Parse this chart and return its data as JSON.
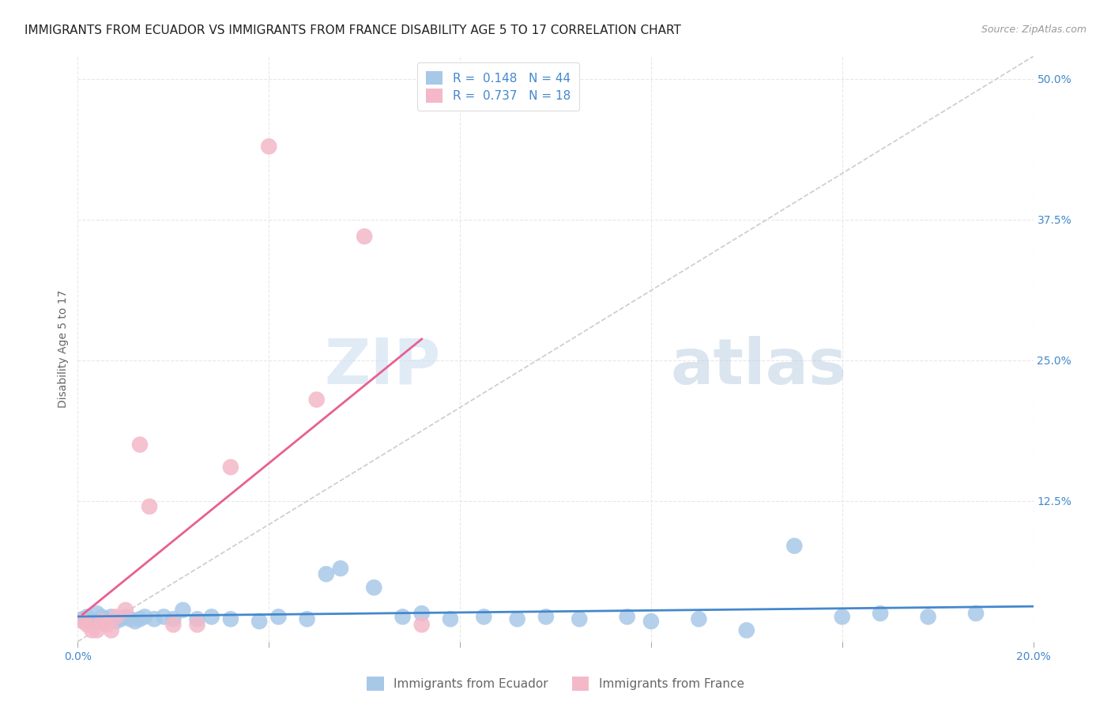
{
  "title": "IMMIGRANTS FROM ECUADOR VS IMMIGRANTS FROM FRANCE DISABILITY AGE 5 TO 17 CORRELATION CHART",
  "source": "Source: ZipAtlas.com",
  "ylabel": "Disability Age 5 to 17",
  "xlim": [
    0.0,
    0.2
  ],
  "ylim": [
    0.0,
    0.52
  ],
  "x_ticks": [
    0.0,
    0.04,
    0.08,
    0.12,
    0.16,
    0.2
  ],
  "x_tick_labels": [
    "0.0%",
    "",
    "",
    "",
    "",
    "20.0%"
  ],
  "y_ticks_right": [
    0.0,
    0.125,
    0.25,
    0.375,
    0.5
  ],
  "y_tick_labels_right": [
    "",
    "12.5%",
    "25.0%",
    "37.5%",
    "50.0%"
  ],
  "watermark_zip": "ZIP",
  "watermark_atlas": "atlas",
  "ecuador_R": 0.148,
  "ecuador_N": 44,
  "france_R": 0.737,
  "france_N": 18,
  "ecuador_color": "#a8c8e8",
  "france_color": "#f4b8c8",
  "ecuador_line_color": "#4488cc",
  "france_line_color": "#e86090",
  "diagonal_color": "#cccccc",
  "background_color": "#ffffff",
  "grid_color": "#e8e8e8",
  "ecuador_x": [
    0.001,
    0.002,
    0.003,
    0.004,
    0.005,
    0.005,
    0.006,
    0.007,
    0.008,
    0.009,
    0.01,
    0.011,
    0.012,
    0.013,
    0.014,
    0.016,
    0.018,
    0.02,
    0.022,
    0.025,
    0.028,
    0.032,
    0.038,
    0.042,
    0.048,
    0.052,
    0.055,
    0.062,
    0.068,
    0.072,
    0.078,
    0.085,
    0.092,
    0.098,
    0.105,
    0.115,
    0.12,
    0.13,
    0.14,
    0.15,
    0.16,
    0.168,
    0.178,
    0.188
  ],
  "ecuador_y": [
    0.02,
    0.022,
    0.018,
    0.025,
    0.022,
    0.018,
    0.02,
    0.022,
    0.018,
    0.02,
    0.022,
    0.02,
    0.018,
    0.02,
    0.022,
    0.02,
    0.022,
    0.02,
    0.028,
    0.02,
    0.022,
    0.02,
    0.018,
    0.022,
    0.02,
    0.06,
    0.065,
    0.048,
    0.022,
    0.025,
    0.02,
    0.022,
    0.02,
    0.022,
    0.02,
    0.022,
    0.018,
    0.02,
    0.01,
    0.085,
    0.022,
    0.025,
    0.022,
    0.025
  ],
  "france_x": [
    0.001,
    0.002,
    0.003,
    0.004,
    0.005,
    0.006,
    0.007,
    0.008,
    0.01,
    0.013,
    0.015,
    0.02,
    0.025,
    0.032,
    0.04,
    0.05,
    0.06,
    0.072
  ],
  "france_y": [
    0.018,
    0.015,
    0.01,
    0.01,
    0.018,
    0.015,
    0.01,
    0.022,
    0.028,
    0.175,
    0.12,
    0.015,
    0.015,
    0.155,
    0.44,
    0.215,
    0.36,
    0.015
  ],
  "legend_labels": [
    "Immigrants from Ecuador",
    "Immigrants from France"
  ],
  "title_fontsize": 11,
  "axis_label_fontsize": 10,
  "tick_fontsize": 10,
  "legend_fontsize": 11,
  "source_fontsize": 9
}
